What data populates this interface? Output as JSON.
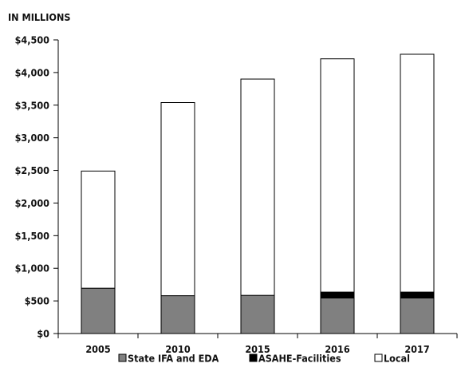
{
  "chart_data": {
    "type": "bar",
    "stacked": true,
    "unit_label": "IN MILLIONS",
    "categories": [
      "2005",
      "2010",
      "2015",
      "2016",
      "2017"
    ],
    "series": [
      {
        "name": "State IFA and EDA",
        "color": "#808080",
        "values": [
          695,
          580,
          585,
          545,
          545
        ]
      },
      {
        "name": "ASAHE-Facilities",
        "color": "#000000",
        "values": [
          0,
          0,
          0,
          90,
          90
        ]
      },
      {
        "name": "Local",
        "color": "#ffffff",
        "values": [
          1795,
          2960,
          3315,
          3575,
          3645
        ]
      }
    ],
    "ylim": [
      0,
      4500
    ],
    "y_ticks": [
      0,
      500,
      1000,
      1500,
      2000,
      2500,
      3000,
      3500,
      4000,
      4500
    ],
    "y_tick_labels": [
      "$0",
      "$500",
      "$1,000",
      "$1,500",
      "$2,000",
      "$2,500",
      "$3,000",
      "$3,500",
      "$4,000",
      "$4,500"
    ],
    "grid": false,
    "legend_position": "bottom"
  }
}
